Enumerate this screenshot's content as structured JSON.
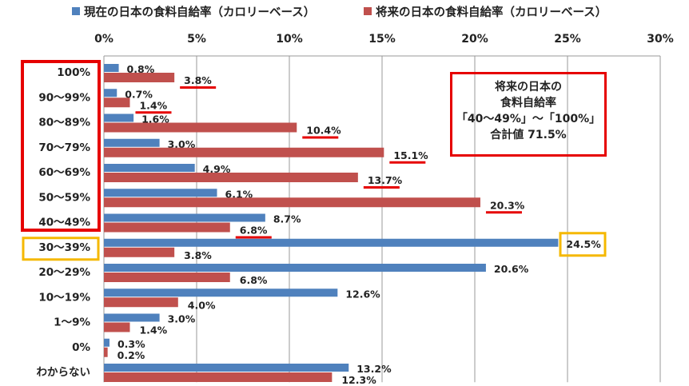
{
  "chart_data": {
    "type": "bar",
    "orientation": "horizontal",
    "categories": [
      "100%",
      "90〜99%",
      "80〜89%",
      "70〜79%",
      "60〜69%",
      "50〜59%",
      "40〜49%",
      "30〜39%",
      "20〜29%",
      "10〜19%",
      "1〜9%",
      "0%",
      "わからない"
    ],
    "series": [
      {
        "name": "現在の日本の食料自給率（カロリーベース）",
        "color": "#4F81BD",
        "values": [
          0.8,
          0.7,
          1.6,
          3.0,
          4.9,
          6.1,
          8.7,
          24.5,
          20.6,
          12.6,
          3.0,
          0.3,
          13.2
        ]
      },
      {
        "name": "将来の日本の食料自給率（カロリーベース）",
        "color": "#C0504D",
        "values": [
          3.8,
          1.4,
          10.4,
          15.1,
          13.7,
          20.3,
          6.8,
          3.8,
          6.8,
          4.0,
          1.4,
          0.2,
          12.3
        ]
      }
    ],
    "xlim": [
      0,
      30
    ],
    "xticks": [
      "0%",
      "5%",
      "10%",
      "15%",
      "20%",
      "25%",
      "30%"
    ],
    "xtick_values": [
      0,
      5,
      10,
      15,
      20,
      25,
      30
    ],
    "legend_position": "top",
    "grid": true,
    "annotation": {
      "lines": [
        "将来の日本の",
        "食料自給率",
        "「40〜49%」〜「100%」",
        "合計値 71.5%"
      ]
    },
    "highlight_red_rows": [
      0,
      1,
      2,
      3,
      4,
      5,
      6
    ],
    "highlight_yellow_row": 7
  }
}
